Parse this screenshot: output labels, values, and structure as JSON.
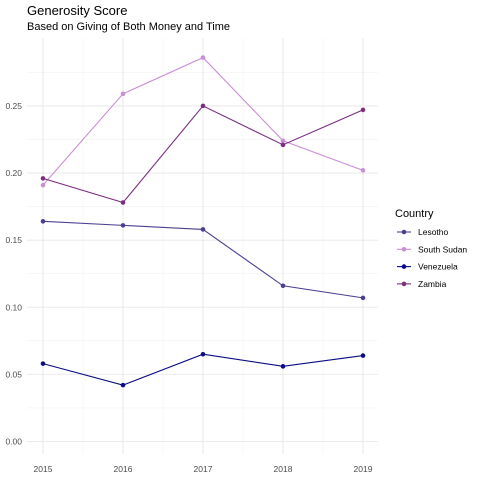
{
  "chart_data": {
    "type": "line",
    "title": "Generosity Score",
    "subtitle": "Based on Giving of Both Money and Time",
    "xlabel": "",
    "ylabel": "",
    "x": [
      "2015",
      "2016",
      "2017",
      "2018",
      "2019"
    ],
    "xlim": [
      2014.95,
      2019.05
    ],
    "ylim": [
      -0.005,
      0.3
    ],
    "yticks": [
      0.0,
      0.05,
      0.1,
      0.15,
      0.2,
      0.25
    ],
    "ytick_labels": [
      "0.00",
      "0.05",
      "0.10",
      "0.15",
      "0.20",
      "0.25"
    ],
    "grid": true,
    "legend": {
      "title": "Country",
      "position": "right"
    },
    "series": [
      {
        "name": "Lesotho",
        "color": "#4b3f8f",
        "values": [
          0.164,
          0.161,
          0.158,
          0.116,
          0.107
        ]
      },
      {
        "name": "South Sudan",
        "color": "#c98fd6",
        "values": [
          0.191,
          0.259,
          0.286,
          0.224,
          0.202
        ]
      },
      {
        "name": "Venezuela",
        "color": "#0b0b85",
        "values": [
          0.058,
          0.042,
          0.065,
          0.056,
          0.064
        ]
      },
      {
        "name": "Zambia",
        "color": "#7b2d82",
        "values": [
          0.196,
          0.178,
          0.25,
          0.221,
          0.247
        ]
      }
    ]
  }
}
